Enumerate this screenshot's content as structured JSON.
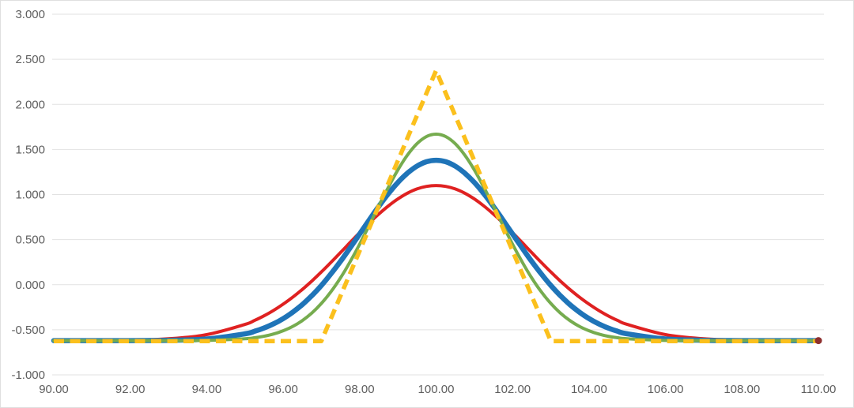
{
  "chart_data": {
    "type": "line",
    "title": "",
    "xlabel": "",
    "ylabel": "",
    "legend": "none",
    "grid": true,
    "xlim": [
      90,
      110
    ],
    "ylim": [
      -1,
      3
    ],
    "background_color": "#ffffff",
    "gridline_color": "#e2e2e2",
    "axis_label_color": "#5e5e5e",
    "x_tick_values": [
      90,
      92,
      94,
      96,
      98,
      100,
      102,
      104,
      106,
      108,
      110
    ],
    "x_tick_labels": [
      "90.00",
      "92.00",
      "94.00",
      "96.00",
      "98.00",
      "100.00",
      "102.00",
      "104.00",
      "106.00",
      "108.00",
      "110.00"
    ],
    "y_tick_values": [
      3,
      2.5,
      2,
      1.5,
      1,
      0.5,
      0,
      -0.5,
      -1
    ],
    "y_tick_labels": [
      "3.000",
      "2.500",
      "2.000",
      "1.500",
      "1.000",
      "0.500",
      "0.000",
      "-0.500",
      "-1.000"
    ],
    "x": [
      90,
      91,
      92,
      93,
      94,
      95,
      95.25,
      95.5,
      95.75,
      96,
      96.25,
      96.5,
      96.75,
      97,
      97.25,
      97.5,
      97.75,
      98,
      98.25,
      98.5,
      98.75,
      99,
      99.25,
      99.5,
      99.75,
      100,
      100.25,
      100.5,
      100.75,
      101,
      101.25,
      101.5,
      101.75,
      102,
      102.25,
      102.5,
      102.75,
      103,
      103.25,
      103.5,
      103.75,
      104,
      104.25,
      104.5,
      104.75,
      105,
      106,
      107,
      108,
      109,
      110
    ],
    "series": [
      {
        "name": "red-curve",
        "color": "#df2121",
        "width": 4,
        "dash": false,
        "smooth": true,
        "values": [
          -0.62,
          -0.619,
          -0.615,
          -0.6,
          -0.554,
          -0.441,
          -0.397,
          -0.345,
          -0.285,
          -0.216,
          -0.139,
          -0.053,
          0.041,
          0.141,
          0.247,
          0.357,
          0.468,
          0.577,
          0.684,
          0.783,
          0.873,
          0.951,
          1.015,
          1.062,
          1.09,
          1.1,
          1.09,
          1.062,
          1.015,
          0.951,
          0.873,
          0.783,
          0.684,
          0.577,
          0.468,
          0.357,
          0.247,
          0.141,
          0.041,
          -0.053,
          -0.139,
          -0.216,
          -0.285,
          -0.345,
          -0.397,
          -0.441,
          -0.554,
          -0.6,
          -0.615,
          -0.619,
          -0.62
        ]
      },
      {
        "name": "blue-curve",
        "color": "#1f74b8",
        "width": 6.5,
        "dash": false,
        "smooth": true,
        "values": [
          -0.62,
          -0.62,
          -0.62,
          -0.617,
          -0.602,
          -0.545,
          -0.517,
          -0.48,
          -0.434,
          -0.376,
          -0.305,
          -0.221,
          -0.121,
          -0.008,
          0.12,
          0.259,
          0.408,
          0.562,
          0.717,
          0.868,
          1.009,
          1.134,
          1.237,
          1.315,
          1.364,
          1.38,
          1.364,
          1.315,
          1.237,
          1.134,
          1.009,
          0.868,
          0.717,
          0.562,
          0.408,
          0.259,
          0.12,
          -0.008,
          -0.121,
          -0.221,
          -0.305,
          -0.376,
          -0.434,
          -0.48,
          -0.517,
          -0.545,
          -0.602,
          -0.617,
          -0.62,
          -0.62,
          -0.62
        ]
      },
      {
        "name": "green-curve",
        "color": "#76ac4f",
        "width": 4,
        "dash": false,
        "smooth": true,
        "values": [
          -0.62,
          -0.62,
          -0.62,
          -0.62,
          -0.618,
          -0.6,
          -0.589,
          -0.572,
          -0.547,
          -0.511,
          -0.463,
          -0.398,
          -0.314,
          -0.208,
          -0.078,
          0.076,
          0.253,
          0.449,
          0.658,
          0.872,
          1.08,
          1.273,
          1.437,
          1.564,
          1.643,
          1.67,
          1.643,
          1.564,
          1.437,
          1.273,
          1.08,
          0.872,
          0.658,
          0.449,
          0.253,
          0.076,
          -0.078,
          -0.208,
          -0.314,
          -0.398,
          -0.463,
          -0.511,
          -0.547,
          -0.572,
          -0.589,
          -0.6,
          -0.618,
          -0.62,
          -0.62,
          -0.62,
          -0.62
        ]
      },
      {
        "name": "yellow-dashed-triangle",
        "color": "#fbc01d",
        "width": 5.5,
        "dash": true,
        "smooth": false,
        "values": [
          -0.625,
          -0.625,
          -0.625,
          -0.625,
          -0.625,
          -0.625,
          -0.625,
          -0.625,
          -0.625,
          -0.625,
          -0.625,
          -0.625,
          -0.625,
          -0.625,
          -0.375,
          -0.125,
          0.125,
          0.375,
          0.625,
          0.875,
          1.125,
          1.375,
          1.625,
          1.875,
          2.125,
          2.375,
          2.125,
          1.875,
          1.625,
          1.375,
          1.125,
          0.875,
          0.625,
          0.375,
          0.125,
          -0.125,
          -0.375,
          -0.625,
          -0.625,
          -0.625,
          -0.625,
          -0.625,
          -0.625,
          -0.625,
          -0.625,
          -0.625,
          -0.625,
          -0.625,
          -0.625,
          -0.625,
          -0.625
        ]
      }
    ],
    "end_marker": {
      "x": 110,
      "y": -0.62,
      "color": "#8e2f2e"
    }
  }
}
